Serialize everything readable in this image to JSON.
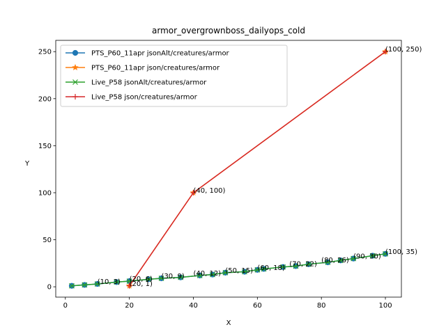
{
  "chart_data": {
    "type": "line",
    "title": "armor_overgrownboss_dailyops_cold",
    "xlabel": "X",
    "ylabel": "Y",
    "xlim": [
      -3,
      105
    ],
    "ylim": [
      -11,
      262
    ],
    "xticks": [
      0,
      20,
      40,
      60,
      80,
      100
    ],
    "yticks": [
      0,
      50,
      100,
      150,
      200,
      250
    ],
    "legend_position": "upper-left",
    "series": [
      {
        "name": "PTS_P60_11apr jsonAlt/creatures/armor",
        "color": "#1f77b4",
        "marker": "circle",
        "x": [
          2,
          6,
          10,
          16,
          20,
          26,
          30,
          36,
          42,
          46,
          50,
          56,
          60,
          62,
          68,
          72,
          76,
          82,
          86,
          90,
          96,
          100
        ],
        "y": [
          1,
          2,
          3,
          5,
          6,
          8,
          9,
          10,
          12,
          13,
          15,
          16,
          18,
          19,
          21,
          22,
          24,
          26,
          28,
          30,
          33,
          35
        ]
      },
      {
        "name": "PTS_P60_11apr json/creatures/armor",
        "color": "#ff7f0e",
        "marker": "star",
        "x": [
          20,
          40,
          100
        ],
        "y": [
          1,
          100,
          250
        ]
      },
      {
        "name": "Live_P58 jsonAlt/creatures/armor",
        "color": "#2ca02c",
        "marker": "x",
        "x": [
          2,
          6,
          10,
          16,
          20,
          26,
          30,
          36,
          42,
          46,
          50,
          56,
          60,
          62,
          68,
          72,
          76,
          82,
          86,
          90,
          96,
          100
        ],
        "y": [
          1,
          2,
          3,
          5,
          6,
          8,
          9,
          10,
          12,
          13,
          15,
          16,
          18,
          19,
          21,
          22,
          24,
          26,
          28,
          30,
          33,
          35
        ]
      },
      {
        "name": "Live_P58 json/creatures/armor",
        "color": "#d62728",
        "marker": "plus",
        "x": [
          20,
          40,
          100
        ],
        "y": [
          1,
          100,
          250
        ]
      }
    ],
    "annotations": [
      {
        "text": "(10, 3)",
        "x": 10,
        "y": 3
      },
      {
        "text": "(20, 6)",
        "x": 20,
        "y": 6
      },
      {
        "text": "(20, 1)",
        "x": 20,
        "y": 1
      },
      {
        "text": "(30, 9)",
        "x": 30,
        "y": 9
      },
      {
        "text": "(40, 12)",
        "x": 40,
        "y": 12
      },
      {
        "text": "(40, 100)",
        "x": 40,
        "y": 100
      },
      {
        "text": "(50, 15)",
        "x": 50,
        "y": 15
      },
      {
        "text": "(60, 18)",
        "x": 60,
        "y": 18
      },
      {
        "text": "(70, 22)",
        "x": 70,
        "y": 22
      },
      {
        "text": "(80, 26)",
        "x": 80,
        "y": 26
      },
      {
        "text": "(90, 30)",
        "x": 90,
        "y": 30
      },
      {
        "text": "(100, 35)",
        "x": 100,
        "y": 35
      },
      {
        "text": "(100, 250)",
        "x": 100,
        "y": 250
      }
    ]
  }
}
